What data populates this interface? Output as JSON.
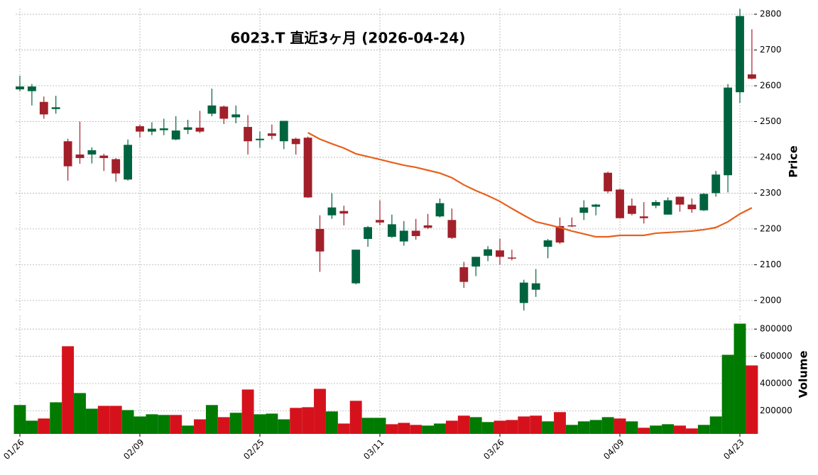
{
  "chart_data": {
    "type": "candlestick",
    "title": "6023.T  直近3ヶ月  (2026-04-24)",
    "categories": [
      "01/26",
      null,
      null,
      null,
      null,
      null,
      null,
      null,
      null,
      null,
      "02/09",
      null,
      null,
      null,
      null,
      null,
      null,
      null,
      null,
      null,
      "02/25",
      null,
      null,
      null,
      null,
      null,
      null,
      null,
      null,
      null,
      "03/11",
      null,
      null,
      null,
      null,
      null,
      null,
      null,
      null,
      null,
      "03/26",
      null,
      null,
      null,
      null,
      null,
      null,
      null,
      null,
      null,
      "04/09",
      null,
      null,
      null,
      null,
      null,
      null,
      null,
      null,
      null,
      "04/23",
      null
    ],
    "open": [
      2590,
      2585,
      2555,
      2535,
      2445,
      2408,
      2408,
      2405,
      2395,
      2338,
      2487,
      2472,
      2476,
      2450,
      2477,
      2483,
      2522,
      2542,
      2512,
      2485,
      2448,
      2467,
      2445,
      2452,
      2455,
      2200,
      2238,
      2250,
      2048,
      2172,
      2225,
      2178,
      2165,
      2195,
      2210,
      2235,
      2225,
      2093,
      2095,
      2125,
      2140,
      2120,
      1993,
      2030,
      2150,
      2208,
      2210,
      2245,
      2262,
      2357,
      2310,
      2265,
      2235,
      2265,
      2240,
      2290,
      2268,
      2252,
      2300,
      2350,
      2582,
      2632
    ],
    "high": [
      2628,
      2605,
      2570,
      2572,
      2452,
      2500,
      2428,
      2410,
      2398,
      2450,
      2492,
      2498,
      2508,
      2515,
      2505,
      2530,
      2592,
      2545,
      2545,
      2518,
      2472,
      2492,
      2502,
      2455,
      2458,
      2238,
      2300,
      2265,
      2142,
      2208,
      2280,
      2240,
      2222,
      2228,
      2242,
      2285,
      2257,
      2108,
      2122,
      2152,
      2173,
      2142,
      2058,
      2088,
      2172,
      2232,
      2232,
      2280,
      2270,
      2360,
      2312,
      2285,
      2275,
      2280,
      2288,
      2290,
      2285,
      2300,
      2362,
      2605,
      2815,
      2758
    ],
    "low": [
      2585,
      2545,
      2508,
      2522,
      2335,
      2382,
      2383,
      2362,
      2332,
      2335,
      2455,
      2462,
      2462,
      2448,
      2465,
      2468,
      2515,
      2493,
      2495,
      2408,
      2427,
      2450,
      2423,
      2408,
      2287,
      2080,
      2228,
      2210,
      2045,
      2150,
      2210,
      2175,
      2153,
      2170,
      2200,
      2232,
      2172,
      2035,
      2068,
      2110,
      2100,
      2112,
      1972,
      2010,
      2118,
      2158,
      2205,
      2225,
      2238,
      2300,
      2230,
      2238,
      2215,
      2258,
      2240,
      2248,
      2245,
      2250,
      2290,
      2302,
      2552,
      2618
    ],
    "close": [
      2598,
      2598,
      2520,
      2540,
      2375,
      2398,
      2420,
      2398,
      2355,
      2435,
      2472,
      2480,
      2481,
      2475,
      2484,
      2472,
      2545,
      2508,
      2520,
      2445,
      2452,
      2460,
      2502,
      2437,
      2288,
      2137,
      2260,
      2243,
      2142,
      2205,
      2218,
      2213,
      2195,
      2180,
      2203,
      2272,
      2175,
      2052,
      2122,
      2143,
      2122,
      2118,
      2050,
      2048,
      2168,
      2162,
      2208,
      2260,
      2268,
      2305,
      2230,
      2242,
      2230,
      2275,
      2280,
      2268,
      2255,
      2298,
      2352,
      2595,
      2795,
      2620
    ],
    "up_color": "#00633f",
    "down_color": "#a1202a",
    "moving_average": {
      "color": "#e8601c",
      "values": [
        null,
        null,
        null,
        null,
        null,
        null,
        null,
        null,
        null,
        null,
        null,
        null,
        null,
        null,
        null,
        null,
        null,
        null,
        null,
        null,
        null,
        null,
        null,
        null,
        2469,
        2451,
        2438,
        2426,
        2410,
        2402,
        2394,
        2386,
        2378,
        2372,
        2364,
        2356,
        2343,
        2323,
        2307,
        2293,
        2277,
        2257,
        2238,
        2220,
        2212,
        2204,
        2194,
        2186,
        2178,
        2178,
        2182,
        2182,
        2182,
        2188,
        2190,
        2192,
        2194,
        2198,
        2204,
        2220,
        2242,
        2259
      ]
    },
    "ylim": [
      1968,
      2816
    ],
    "yticks": [
      2000,
      2100,
      2200,
      2300,
      2400,
      2500,
      2600,
      2700,
      2800
    ],
    "y_label": "Price",
    "volume": {
      "values": [
        242000,
        127000,
        143000,
        262000,
        674000,
        330000,
        215000,
        236000,
        236000,
        205000,
        158000,
        174000,
        169000,
        169000,
        91000,
        137000,
        242000,
        153000,
        185000,
        356000,
        174000,
        179000,
        137000,
        221000,
        226000,
        361000,
        195000,
        106000,
        273000,
        148000,
        148000,
        101000,
        111000,
        96000,
        91000,
        106000,
        127000,
        164000,
        153000,
        117000,
        127000,
        132000,
        158000,
        164000,
        122000,
        190000,
        96000,
        122000,
        132000,
        153000,
        143000,
        122000,
        75000,
        91000,
        101000,
        91000,
        70000,
        96000,
        158000,
        611000,
        840000,
        533000
      ],
      "up_color": "#007a00",
      "down_color": "#d5121c",
      "ylim": [
        30000,
        900000
      ],
      "yticks": [
        200000,
        400000,
        600000,
        800000
      ],
      "y_label": "Volume"
    },
    "grid": true
  }
}
